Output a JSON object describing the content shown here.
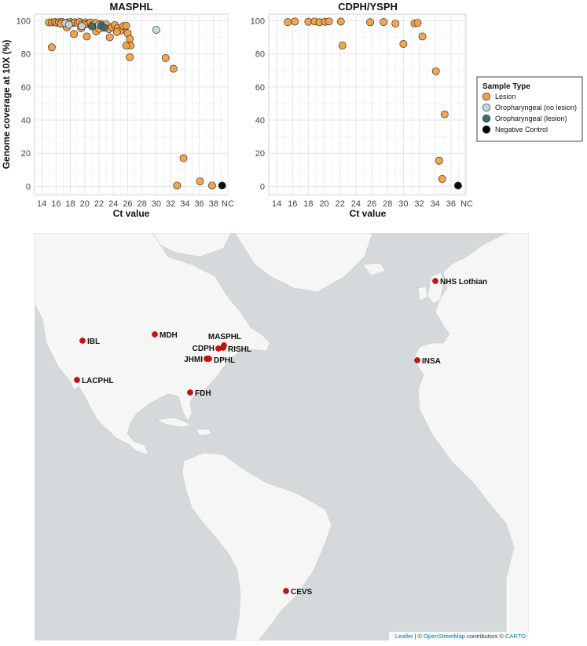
{
  "chart_data": [
    {
      "type": "scatter",
      "title": "MASPHL",
      "xlabel": "Ct value",
      "ylabel": "Genome coverage at 10X (%)",
      "x_ticks": [
        "14",
        "16",
        "18",
        "20",
        "22",
        "24",
        "26",
        "28",
        "30",
        "32",
        "34",
        "36",
        "38",
        "NC"
      ],
      "xlim": [
        13,
        40
      ],
      "ylim": [
        -5,
        104
      ],
      "y_ticks": [
        0,
        20,
        40,
        60,
        80,
        100
      ],
      "grid": true,
      "series": [
        {
          "name": "Lesion",
          "color": "#f4a044",
          "points": [
            [
              15.0,
              99
            ],
            [
              15.4,
              99
            ],
            [
              15.8,
              99.3
            ],
            [
              16.1,
              98.8
            ],
            [
              16.4,
              99.1
            ],
            [
              16.8,
              99.4
            ],
            [
              17.2,
              98.6
            ],
            [
              17.6,
              99
            ],
            [
              18.0,
              99.2
            ],
            [
              18.3,
              98.5
            ],
            [
              18.6,
              99.1
            ],
            [
              19.0,
              98.7
            ],
            [
              19.3,
              99.3
            ],
            [
              19.7,
              98.4
            ],
            [
              20.1,
              99
            ],
            [
              20.4,
              98.2
            ],
            [
              20.8,
              98.9
            ],
            [
              21.1,
              97.5
            ],
            [
              21.5,
              98.8
            ],
            [
              21.9,
              97
            ],
            [
              22.3,
              98.1
            ],
            [
              22.6,
              96.5
            ],
            [
              23.0,
              97.8
            ],
            [
              23.4,
              95
            ],
            [
              23.8,
              96.2
            ],
            [
              24.2,
              97.4
            ],
            [
              24.6,
              95.5
            ],
            [
              25.0,
              94
            ],
            [
              25.4,
              96.8
            ],
            [
              17.5,
              96
            ],
            [
              18.5,
              92
            ],
            [
              19.5,
              95.5
            ],
            [
              20.3,
              90.5
            ],
            [
              21.6,
              93.5
            ],
            [
              15.4,
              84
            ],
            [
              23.5,
              90
            ],
            [
              25.8,
              97
            ],
            [
              26.0,
              92.5
            ],
            [
              26.3,
              89
            ],
            [
              26.4,
              85
            ],
            [
              25.8,
              85
            ],
            [
              26.3,
              78
            ],
            [
              31.3,
              77.5
            ],
            [
              32.4,
              71
            ],
            [
              32.9,
              0.5
            ],
            [
              33.8,
              17
            ],
            [
              36.1,
              3
            ],
            [
              37.8,
              0.5
            ],
            [
              16.7,
              98.2
            ],
            [
              19.9,
              97.6
            ],
            [
              22.0,
              95.2
            ],
            [
              24.5,
              93.2
            ]
          ]
        },
        {
          "name": "Oropharyngeal (no lesion)",
          "color": "#bcd9de",
          "points": [
            [
              17.3,
              98.5
            ],
            [
              17.8,
              97.6
            ],
            [
              22.0,
              97.5
            ],
            [
              30.0,
              94.5
            ],
            [
              19.6,
              96.7
            ]
          ]
        },
        {
          "name": "Oropharyngeal (lesion)",
          "color": "#3e6b6a",
          "points": [
            [
              21.0,
              96.6
            ],
            [
              22.3,
              97.1
            ],
            [
              22.7,
              95.8
            ]
          ]
        },
        {
          "name": "Negative Control",
          "color": "#000000",
          "points": [
            [
              39.2,
              0.5
            ]
          ]
        }
      ]
    },
    {
      "type": "scatter",
      "title": "CDPH/YSPH",
      "xlabel": "Ct value",
      "ylabel": "",
      "x_ticks": [
        "14",
        "16",
        "18",
        "20",
        "22",
        "24",
        "26",
        "28",
        "30",
        "32",
        "34",
        "36",
        "NC"
      ],
      "xlim": [
        13,
        37.8
      ],
      "ylim": [
        -5,
        104
      ],
      "y_ticks": [
        0,
        20,
        40,
        60,
        80,
        100
      ],
      "grid": true,
      "series": [
        {
          "name": "Lesion",
          "color": "#f4a044",
          "points": [
            [
              15.4,
              99.2
            ],
            [
              16.3,
              99.5
            ],
            [
              18.0,
              99.4
            ],
            [
              18.8,
              99.6
            ],
            [
              19.4,
              99.1
            ],
            [
              20.1,
              99.4
            ],
            [
              20.6,
              99.6
            ],
            [
              22.1,
              99.5
            ],
            [
              22.3,
              85
            ],
            [
              25.8,
              99.1
            ],
            [
              27.5,
              99.2
            ],
            [
              29.0,
              98.3
            ],
            [
              30.0,
              86
            ],
            [
              31.4,
              98.4
            ],
            [
              31.8,
              98.7
            ],
            [
              32.4,
              90.5
            ],
            [
              34.1,
              69.5
            ],
            [
              34.5,
              15.5
            ],
            [
              34.9,
              4.5
            ],
            [
              35.2,
              43.5
            ]
          ]
        },
        {
          "name": "Negative Control",
          "color": "#000000",
          "points": [
            [
              36.9,
              0.5
            ]
          ]
        }
      ]
    }
  ],
  "legend": {
    "title": "Sample Type",
    "items": [
      {
        "label": "Lesion",
        "color": "#f4a044"
      },
      {
        "label": "Oropharyngeal (no lesion)",
        "color": "#bcd9de"
      },
      {
        "label": "Oropharyngeal (lesion)",
        "color": "#3e6b6a"
      },
      {
        "label": "Negative Control",
        "color": "#000000"
      }
    ]
  },
  "map": {
    "marker_color": "#cc1111",
    "land_color": "#f6f6f4",
    "water_color": "#d4dadc",
    "sites": [
      {
        "label": "NHS Lothian"
      },
      {
        "label": "IBL"
      },
      {
        "label": "MDH"
      },
      {
        "label": "MASPHL"
      },
      {
        "label": "CDPH"
      },
      {
        "label": "RISHL"
      },
      {
        "label": "JHMI"
      },
      {
        "label": "DPHL"
      },
      {
        "label": "INSA"
      },
      {
        "label": "LACPHL"
      },
      {
        "label": "FDH"
      },
      {
        "label": "CEVS"
      }
    ],
    "attribution": {
      "leaflet": "Leaflet",
      "sep1": " | © ",
      "osm": "OpenStreetMap",
      "contrib": " contributors © ",
      "carto": "CARTO"
    }
  }
}
